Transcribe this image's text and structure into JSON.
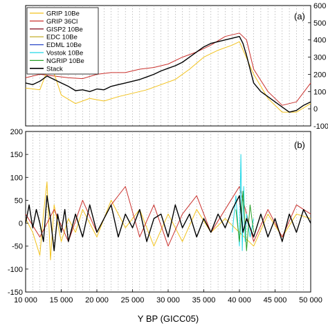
{
  "chart_data": {
    "type": "line",
    "xlabel": "Y BP (GICC05)",
    "xlim": [
      10000,
      50000
    ],
    "x_ticks": [
      "10 000",
      "15 000",
      "20 000",
      "25 000",
      "30 000",
      "35 000",
      "40 000",
      "45 000",
      "50 000"
    ],
    "x_tick_values": [
      10000,
      15000,
      20000,
      25000,
      30000,
      35000,
      40000,
      45000,
      50000
    ],
    "grid": "vertical dotted lines every 1000 years",
    "legend_position": "top-left",
    "legend": [
      {
        "name": "GRIP 10Be",
        "color": "#f2c21c"
      },
      {
        "name": "GRIP 36Cl",
        "color": "#c9302c"
      },
      {
        "name": "GISP2 10Be",
        "color": "#8b1a2b"
      },
      {
        "name": "EDC 10Be",
        "color": "#c8b43c"
      },
      {
        "name": "EDML 10Be",
        "color": "#2a48c8"
      },
      {
        "name": "Vostok 10Be",
        "color": "#22d8e8"
      },
      {
        "name": "NGRIP 10Be",
        "color": "#28a028"
      },
      {
        "name": "Stack",
        "color": "#000000"
      }
    ],
    "panels": [
      {
        "label": "(a)",
        "y_axis_side": "right",
        "ylim": [
          -100,
          600
        ],
        "y_ticks": [
          "600",
          "500",
          "400",
          "300",
          "200",
          "100",
          "0",
          "-100"
        ],
        "y_tick_values": [
          600,
          500,
          400,
          300,
          200,
          100,
          0,
          -100
        ],
        "series": [
          {
            "name": "Stack",
            "color": "#000000",
            "x": [
              10000,
              11000,
              12000,
              13000,
              14000,
              15000,
              16000,
              17000,
              18000,
              19000,
              20000,
              21000,
              22000,
              23000,
              24000,
              25000,
              26000,
              27000,
              28000,
              29000,
              30000,
              31000,
              32000,
              33000,
              34000,
              35000,
              36000,
              37000,
              38000,
              39000,
              40000,
              40500,
              41000,
              41500,
              42000,
              43000,
              44000,
              45000,
              46000,
              47000,
              48000,
              49000,
              50000
            ],
            "y": [
              150,
              140,
              160,
              190,
              170,
              150,
              130,
              105,
              110,
              100,
              115,
              110,
              130,
              140,
              150,
              160,
              170,
              185,
              200,
              220,
              235,
              250,
              270,
              300,
              330,
              360,
              380,
              390,
              400,
              410,
              420,
              380,
              310,
              230,
              150,
              100,
              70,
              40,
              10,
              -20,
              -10,
              20,
              40
            ]
          },
          {
            "name": "GRIP 36Cl",
            "color": "#c9302c",
            "x": [
              10000,
              12000,
              14000,
              16000,
              18000,
              20000,
              22000,
              24000,
              26000,
              28000,
              30000,
              32000,
              34000,
              36000,
              38000,
              40000,
              41000,
              42000,
              44000,
              46000,
              48000,
              50000
            ],
            "y": [
              180,
              200,
              190,
              180,
              175,
              200,
              210,
              210,
              230,
              240,
              260,
              300,
              330,
              370,
              420,
              440,
              400,
              230,
              100,
              20,
              40,
              150
            ]
          },
          {
            "name": "GRIP 10Be",
            "color": "#f2c21c",
            "x": [
              10000,
              12000,
              13500,
              15000,
              17000,
              19000,
              21000,
              23000,
              25000,
              27000,
              29000,
              31000,
              33000,
              35000,
              37000,
              39000,
              40000,
              42000,
              44000,
              46000,
              48000,
              50000
            ],
            "y": [
              120,
              110,
              270,
              80,
              30,
              60,
              45,
              70,
              90,
              110,
              140,
              170,
              230,
              300,
              340,
              370,
              390,
              200,
              60,
              -20,
              -20,
              30
            ]
          }
        ]
      },
      {
        "label": "(b)",
        "y_axis_side": "left",
        "ylim": [
          -150,
          200
        ],
        "y_ticks": [
          "200",
          "150",
          "100",
          "50",
          "0",
          "-50",
          "-100",
          "-150"
        ],
        "y_tick_values": [
          200,
          150,
          100,
          50,
          0,
          -50,
          -100,
          -150
        ],
        "series": [
          {
            "name": "Stack",
            "color": "#000000",
            "x": [
              10000,
              10500,
              11000,
              11500,
              12000,
              12500,
              13000,
              13500,
              14000,
              14500,
              15000,
              15500,
              16000,
              17000,
              18000,
              19000,
              20000,
              21000,
              22000,
              23000,
              24000,
              25000,
              26000,
              27000,
              28000,
              29000,
              30000,
              31000,
              32000,
              33000,
              34000,
              35000,
              36000,
              37000,
              38000,
              39000,
              40000,
              40500,
              41000,
              42000,
              43000,
              44000,
              45000,
              46000,
              47000,
              48000,
              49000,
              50000
            ],
            "y": [
              0,
              40,
              -10,
              30,
              0,
              -40,
              60,
              10,
              -60,
              20,
              -20,
              30,
              -40,
              20,
              -30,
              40,
              -20,
              10,
              40,
              -30,
              20,
              -10,
              30,
              -40,
              10,
              20,
              -30,
              40,
              -10,
              20,
              -30,
              10,
              -20,
              20,
              -10,
              30,
              60,
              -20,
              10,
              -30,
              20,
              -30,
              10,
              -40,
              20,
              -20,
              30,
              0
            ]
          },
          {
            "name": "GRIP 10Be",
            "color": "#f2c21c",
            "x": [
              10000,
              11000,
              12000,
              12500,
              13000,
              13500,
              14000,
              15000,
              16000,
              17000,
              18000,
              20000,
              22000,
              24000,
              26000,
              28000,
              30000,
              32000,
              34000,
              36000,
              38000,
              40000,
              42000,
              44000,
              46000,
              48000,
              50000
            ],
            "y": [
              10,
              -20,
              -70,
              20,
              90,
              -80,
              40,
              -40,
              10,
              -20,
              30,
              -30,
              50,
              -10,
              30,
              -50,
              20,
              -40,
              30,
              -20,
              10,
              -20,
              -50,
              20,
              -30,
              20,
              10
            ]
          },
          {
            "name": "GRIP 36Cl",
            "color": "#c9302c",
            "x": [
              10000,
              12000,
              14000,
              16000,
              18000,
              20000,
              22000,
              24000,
              26000,
              28000,
              30000,
              32000,
              34000,
              36000,
              38000,
              40000,
              42000,
              44000,
              46000,
              48000,
              50000
            ],
            "y": [
              20,
              -30,
              30,
              -40,
              50,
              -20,
              40,
              80,
              -30,
              40,
              -50,
              20,
              60,
              -20,
              30,
              80,
              -40,
              30,
              -30,
              40,
              20
            ]
          },
          {
            "name": "Vostok 10Be",
            "color": "#22d8e8",
            "x": [
              39000,
              39500,
              40000,
              40200,
              40400,
              40600,
              40800,
              41000,
              41500,
              42000
            ],
            "y": [
              -20,
              60,
              -50,
              150,
              -60,
              80,
              -40,
              20,
              -30,
              10
            ]
          },
          {
            "name": "NGRIP 10Be",
            "color": "#28a028",
            "x": [
              39500,
              40000,
              40500,
              41000,
              41500,
              42000
            ],
            "y": [
              30,
              -40,
              70,
              -60,
              40,
              -20
            ]
          }
        ]
      }
    ]
  }
}
